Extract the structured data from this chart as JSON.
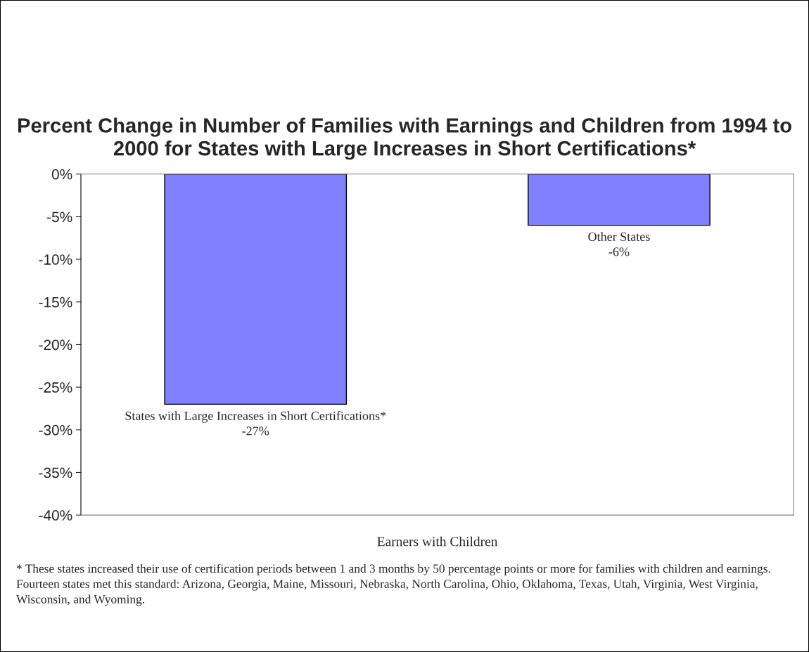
{
  "chart_data": {
    "type": "bar",
    "title": "Percent Change in Number of Families with Earnings and Children from 1994 to 2000 for States with Large Increases in Short Certifications*",
    "categories": [
      "Earners with Children"
    ],
    "series": [
      {
        "name": "States with Large Increases in Short Certifications*",
        "color": "#8080ff",
        "values": [
          -27
        ],
        "value_labels": [
          "-27%"
        ]
      },
      {
        "name": "Other States",
        "color": "#8080ff",
        "values": [
          -6
        ],
        "value_labels": [
          "-6%"
        ]
      }
    ],
    "ylim": [
      -40,
      0
    ],
    "yticks": [
      {
        "value": 0,
        "label": "0%"
      },
      {
        "value": -5,
        "label": "-5%"
      },
      {
        "value": -10,
        "label": "-10%"
      },
      {
        "value": -15,
        "label": "-15%"
      },
      {
        "value": -20,
        "label": "-20%"
      },
      {
        "value": -25,
        "label": "-25%"
      },
      {
        "value": -30,
        "label": "-30%"
      },
      {
        "value": -35,
        "label": "-35%"
      },
      {
        "value": -40,
        "label": "-40%"
      }
    ],
    "grid": false,
    "legend": false,
    "annotations": [
      "* These states increased their use of certification periods between 1 and 3 months by 50 percentage points or more for families with children and earnings.  Fourteen states met this standard: Arizona, Georgia, Maine, Missouri, Nebraska, North Carolina, Ohio, Oklahoma, Texas, Utah, Virginia, West Virginia, Wisconsin, and Wyoming."
    ]
  }
}
